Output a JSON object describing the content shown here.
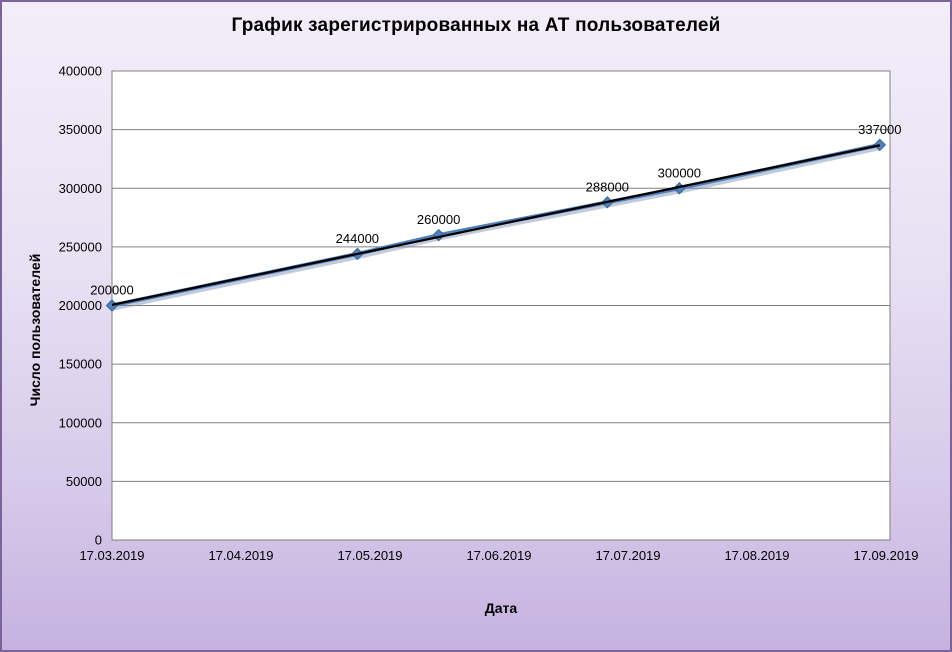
{
  "chart_data": {
    "type": "line",
    "title": "График зарегистрированных на АТ пользователей",
    "xlabel": "Дата",
    "ylabel": "Число пользователей",
    "x_tick_labels": [
      "17.03.2019",
      "17.04.2019",
      "17.05.2019",
      "17.06.2019",
      "17.07.2019",
      "17.08.2019",
      "17.09.2019"
    ],
    "y_ticks": [
      0,
      50000,
      100000,
      150000,
      200000,
      250000,
      300000,
      350000,
      400000
    ],
    "y_tick_labels": [
      "0",
      "50000",
      "100000",
      "150000",
      "200000",
      "250000",
      "300000",
      "350000",
      "400000"
    ],
    "ylim": [
      0,
      400000
    ],
    "grid": "horizontal",
    "legend": "none",
    "series": [
      {
        "name": "Число пользователей",
        "color": "#4F81BD",
        "marker": "diamond",
        "points": [
          {
            "x_frac": 0.0,
            "value": 200000,
            "label": "200000"
          },
          {
            "x_frac": 0.317,
            "value": 244000,
            "label": "244000"
          },
          {
            "x_frac": 0.422,
            "value": 260000,
            "label": "260000"
          },
          {
            "x_frac": 0.64,
            "value": 288000,
            "label": "288000"
          },
          {
            "x_frac": 0.733,
            "value": 300000,
            "label": "300000"
          },
          {
            "x_frac": 0.992,
            "value": 337000,
            "label": "337000"
          }
        ]
      }
    ],
    "trendline": {
      "type": "linear",
      "color": "#000000"
    }
  },
  "style": {
    "background_top": "#f2eef9",
    "background_bottom": "#c5b2e0",
    "frame_border": "#7a6499",
    "plot_bg": "#ffffff",
    "grid_color": "#808080",
    "series_color": "#4F81BD",
    "marker_stroke": "#35618e",
    "shadow_color": "rgba(120,140,175,0.45)",
    "text_color": "#000000"
  }
}
